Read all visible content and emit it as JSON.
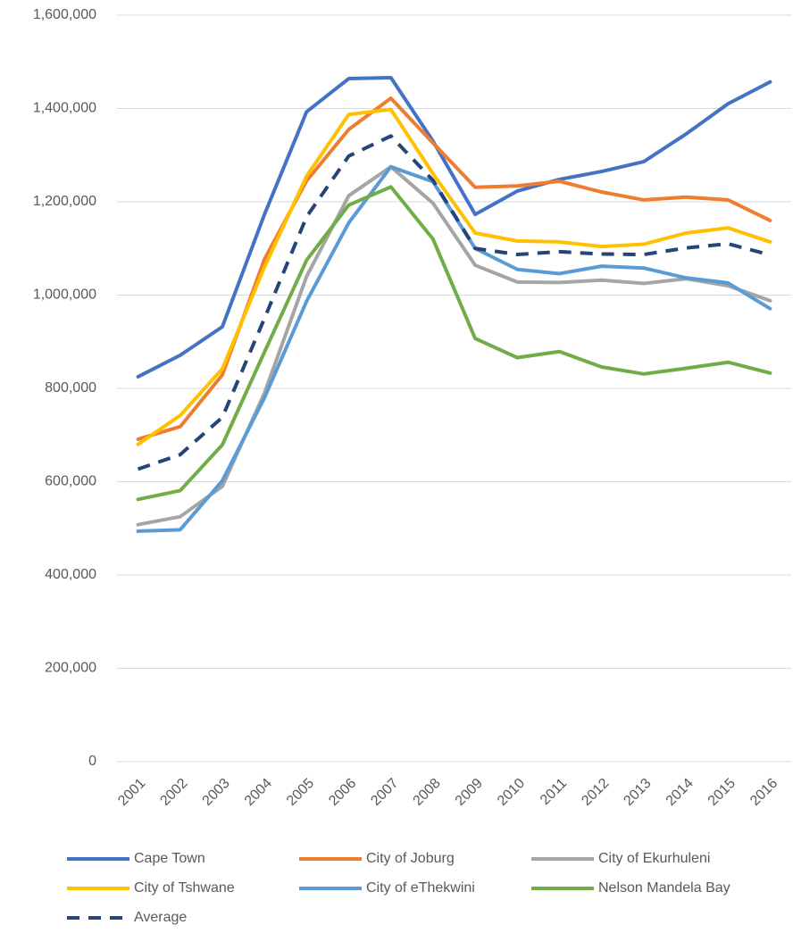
{
  "chart_data": {
    "type": "line",
    "categories": [
      "2001",
      "2002",
      "2003",
      "2004",
      "2005",
      "2006",
      "2007",
      "2008",
      "2009",
      "2010",
      "2011",
      "2012",
      "2013",
      "2014",
      "2015",
      "2016"
    ],
    "series": [
      {
        "name": "Cape Town",
        "color": "#4472c4",
        "values": [
          825000,
          871000,
          932000,
          1173000,
          1393000,
          1464000,
          1466000,
          1330000,
          1173000,
          1223000,
          1248000,
          1265000,
          1286000,
          1345000,
          1410000,
          1457000
        ]
      },
      {
        "name": "City of Joburg",
        "color": "#ed7d31",
        "values": [
          691000,
          718000,
          829000,
          1077000,
          1245000,
          1355000,
          1422000,
          1326000,
          1231000,
          1234000,
          1244000,
          1221000,
          1204000,
          1210000,
          1204000,
          1160000
        ]
      },
      {
        "name": "City of Ekurhuleni",
        "color": "#a5a5a5",
        "values": [
          508000,
          525000,
          590000,
          790000,
          1040000,
          1213000,
          1275000,
          1197000,
          1064000,
          1028000,
          1027000,
          1032000,
          1025000,
          1035000,
          1020000,
          988000
        ]
      },
      {
        "name": "City of Tshwane",
        "color": "#ffc000",
        "values": [
          680000,
          742000,
          842000,
          1060000,
          1255000,
          1387000,
          1398000,
          1260000,
          1133000,
          1116000,
          1114000,
          1104000,
          1109000,
          1133000,
          1144000,
          1114000
        ]
      },
      {
        "name": "City of eThekwini",
        "color": "#5b9bd5",
        "values": [
          494000,
          497000,
          602000,
          780000,
          987000,
          1155000,
          1275000,
          1243000,
          1100000,
          1055000,
          1046000,
          1062000,
          1058000,
          1037000,
          1026000,
          971000
        ]
      },
      {
        "name": "Nelson Mandela Bay",
        "color": "#70ad47",
        "values": [
          562000,
          581000,
          679000,
          878000,
          1075000,
          1193000,
          1232000,
          1120000,
          907000,
          866000,
          879000,
          846000,
          831000,
          843000,
          856000,
          833000
        ]
      },
      {
        "name": "Average",
        "color": "#264478",
        "dashed": true,
        "values": [
          627000,
          658000,
          738000,
          950000,
          1168000,
          1298000,
          1341000,
          1246000,
          1100000,
          1087000,
          1093000,
          1088000,
          1087000,
          1101000,
          1110000,
          1086000
        ]
      }
    ],
    "ylim": [
      0,
      1600000
    ],
    "yticks": [
      0,
      {
        "value": 200000,
        "label": "200,000"
      },
      {
        "value": 400000,
        "label": "400,000"
      },
      {
        "value": 600000,
        "label": "600,000"
      },
      {
        "value": 800000,
        "label": "800,000"
      },
      {
        "value": 1000000,
        "label": "1,000,000"
      },
      {
        "value": 1200000,
        "label": "1,200,000"
      },
      {
        "value": 1400000,
        "label": "1,400,000"
      },
      {
        "value": 1600000,
        "label": "1,600,000"
      }
    ],
    "grid": true,
    "legend": "bottom"
  }
}
